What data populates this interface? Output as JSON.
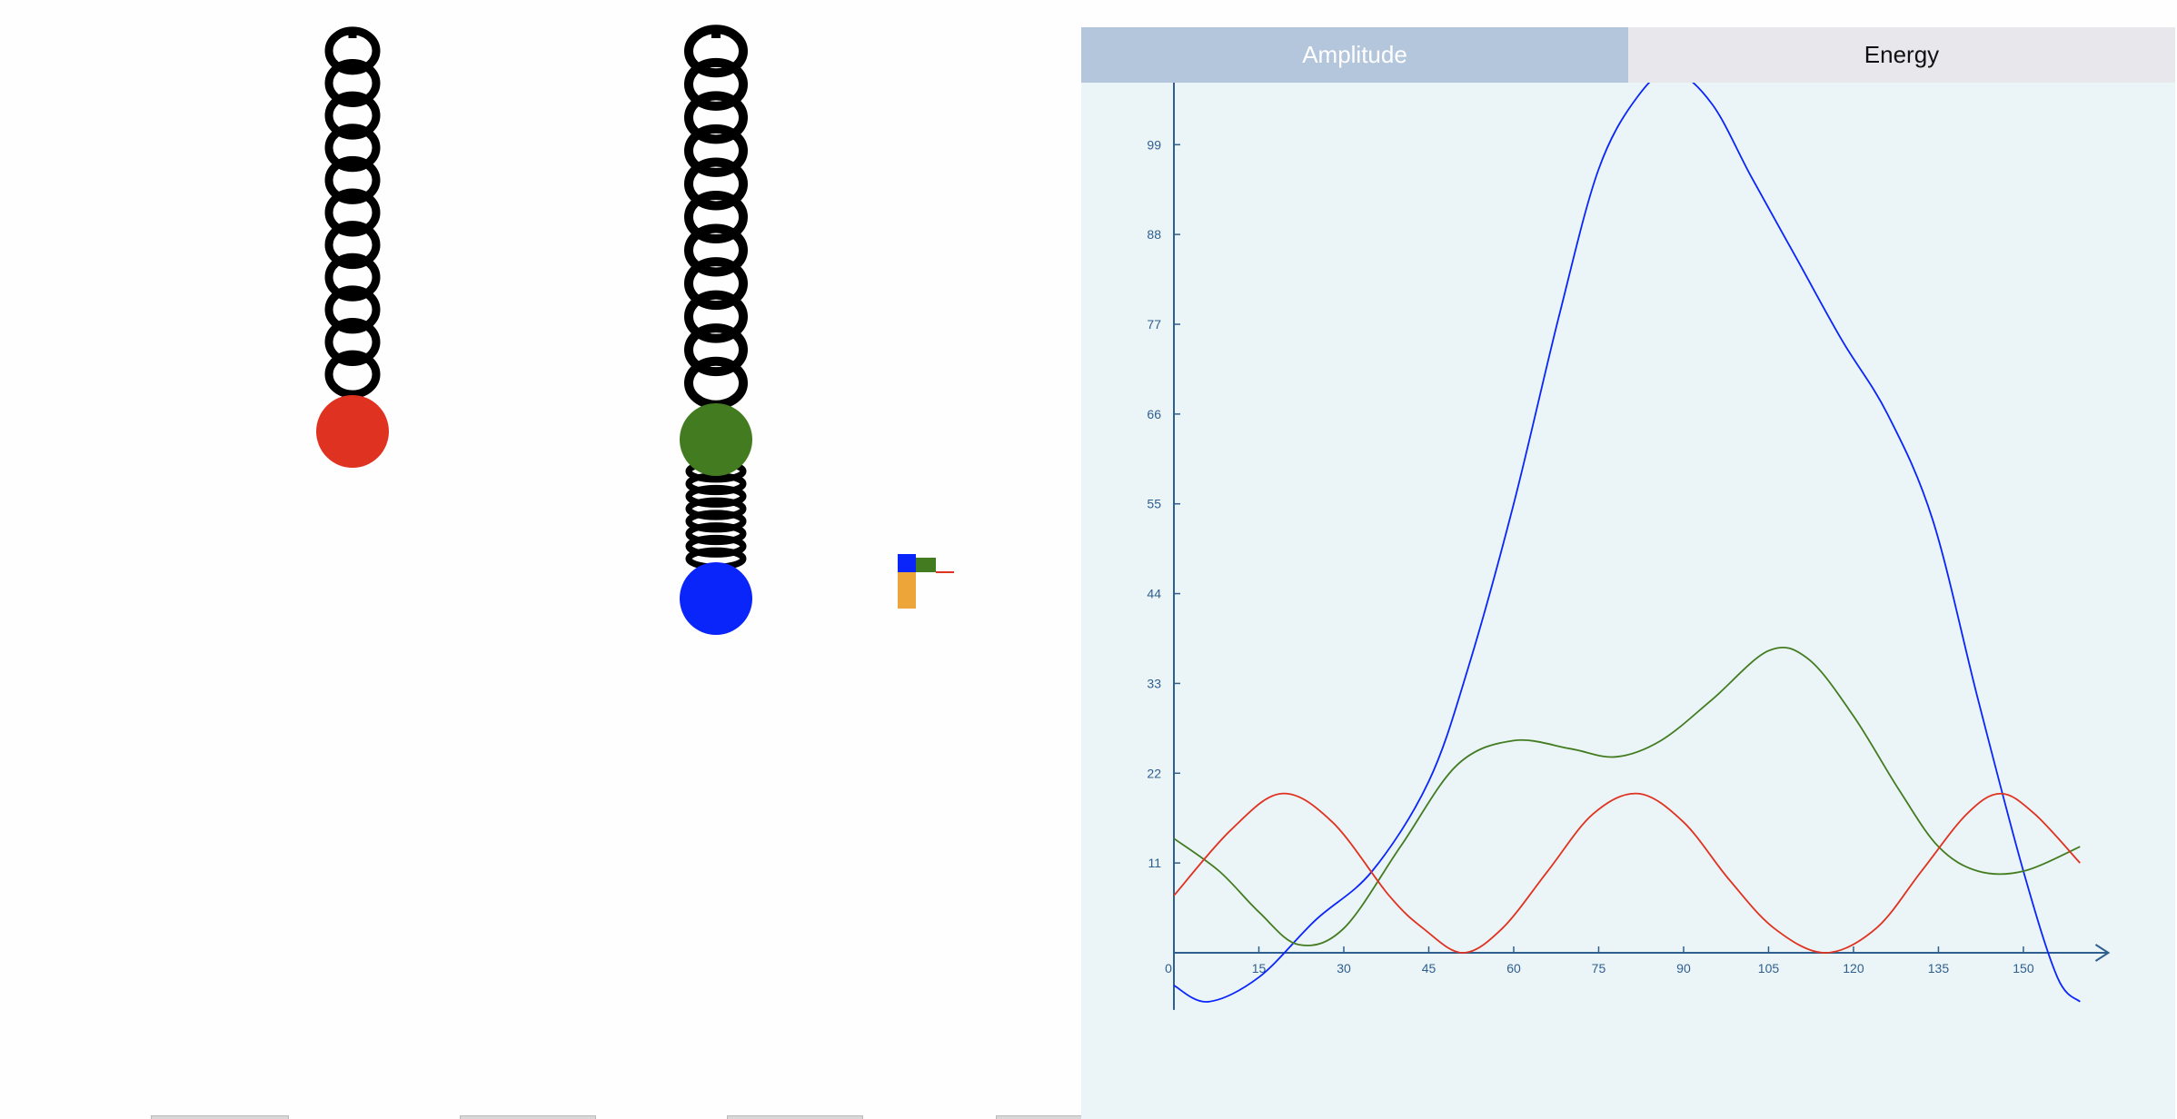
{
  "tabs": [
    {
      "label": "Amplitude",
      "active": true
    },
    {
      "label": "Energy",
      "active": false
    }
  ],
  "colors": {
    "red_mass": "#e03220",
    "green_mass": "#437c20",
    "blue_mass": "#0a25fa",
    "orange_bar": "#eda53a",
    "axis": "#2f5f8f",
    "tab_active": "#b4c6dc",
    "tab_inactive": "#e8e8ec",
    "panel_bg": "#ebf4f7"
  },
  "icons": {
    "spring": "coil-spring",
    "mass": "filled-circle"
  },
  "chart_data": {
    "type": "line",
    "x_ticks": [
      0,
      15,
      30,
      45,
      60,
      75,
      90,
      105,
      120,
      135,
      150
    ],
    "y_ticks": [
      11,
      22,
      33,
      44,
      55,
      66,
      77,
      88,
      99
    ],
    "xlim": [
      0,
      160
    ],
    "ylim": [
      -7,
      109
    ],
    "grid": false,
    "series": [
      {
        "color": "#0a25fa",
        "x": [
          0,
          6,
          15,
          25,
          35,
          45,
          52,
          60,
          68,
          75,
          82,
          88,
          95,
          102,
          110,
          118,
          126,
          134,
          142,
          150,
          156,
          160
        ],
        "y": [
          -4,
          -6,
          -3,
          4,
          10,
          21,
          35,
          55,
          78,
          96,
          105,
          108,
          104,
          95,
          85,
          75,
          66,
          53,
          31,
          10,
          -3,
          -6
        ]
      },
      {
        "color": "#437c20",
        "x": [
          0,
          8,
          15,
          22,
          30,
          40,
          50,
          60,
          70,
          78,
          86,
          95,
          105,
          112,
          120,
          128,
          135,
          142,
          150,
          160
        ],
        "y": [
          14,
          10,
          5,
          1,
          3,
          13,
          23,
          26,
          25,
          24,
          26,
          31,
          37,
          36,
          29,
          20,
          13,
          10,
          10,
          13
        ]
      },
      {
        "color": "#e03220",
        "x": [
          0,
          10,
          19,
          28,
          38,
          44,
          51,
          58,
          66,
          74,
          82,
          90,
          98,
          106,
          115,
          124,
          132,
          140,
          146,
          152,
          160
        ],
        "y": [
          7,
          15,
          19.5,
          16,
          7,
          3,
          0,
          3,
          10,
          17,
          19.5,
          16,
          9,
          3,
          0,
          3,
          10,
          17,
          19.5,
          17,
          11
        ]
      }
    ]
  }
}
